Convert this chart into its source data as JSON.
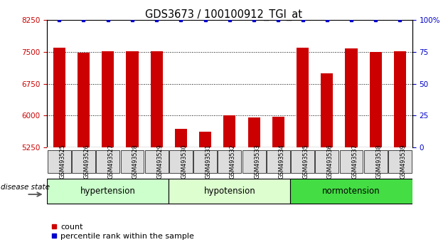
{
  "title": "GDS3673 / 100100912_TGI_at",
  "samples": [
    "GSM493525",
    "GSM493526",
    "GSM493527",
    "GSM493528",
    "GSM493529",
    "GSM493530",
    "GSM493531",
    "GSM493532",
    "GSM493533",
    "GSM493534",
    "GSM493535",
    "GSM493536",
    "GSM493537",
    "GSM493538",
    "GSM493539"
  ],
  "counts": [
    7600,
    7480,
    7510,
    7510,
    7510,
    5680,
    5620,
    6000,
    5960,
    5980,
    7600,
    7000,
    7590,
    7500,
    7510
  ],
  "percentiles": [
    100,
    100,
    100,
    100,
    100,
    100,
    100,
    100,
    100,
    100,
    100,
    100,
    100,
    100,
    100
  ],
  "groups": [
    {
      "label": "hypertension",
      "start": 0,
      "end": 5,
      "color": "#ccffcc"
    },
    {
      "label": "hypotension",
      "start": 5,
      "end": 10,
      "color": "#ddffd0"
    },
    {
      "label": "normotension",
      "start": 10,
      "end": 15,
      "color": "#44dd44"
    }
  ],
  "bar_color": "#cc0000",
  "dot_color": "#0000cc",
  "ylim_left": [
    5250,
    8250
  ],
  "yticks_left": [
    5250,
    6000,
    6750,
    7500,
    8250
  ],
  "ylim_right": [
    0,
    100
  ],
  "yticks_right": [
    0,
    25,
    50,
    75,
    100
  ],
  "grid_vals": [
    6000,
    6750,
    7500
  ],
  "bar_width": 0.5
}
